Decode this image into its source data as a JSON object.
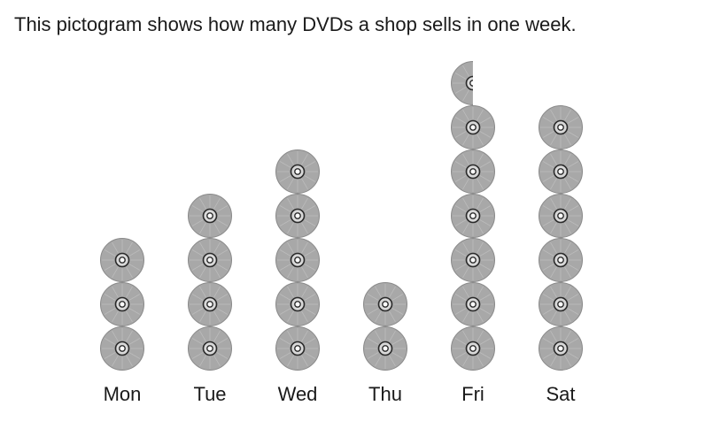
{
  "question": {
    "text": "This pictogram shows how many DVDs a shop sells in one week."
  },
  "chart_data": {
    "type": "pictogram",
    "categories": [
      "Mon",
      "Tue",
      "Wed",
      "Thu",
      "Fri",
      "Sat"
    ],
    "values": [
      3,
      4,
      5,
      2,
      6.5,
      6
    ],
    "icon": "dvd-disc-icon",
    "colors": {
      "disc_fill": "#a8a8a8",
      "disc_stroke": "#8a8a8a",
      "hub_stroke": "#2a2a2a"
    }
  }
}
